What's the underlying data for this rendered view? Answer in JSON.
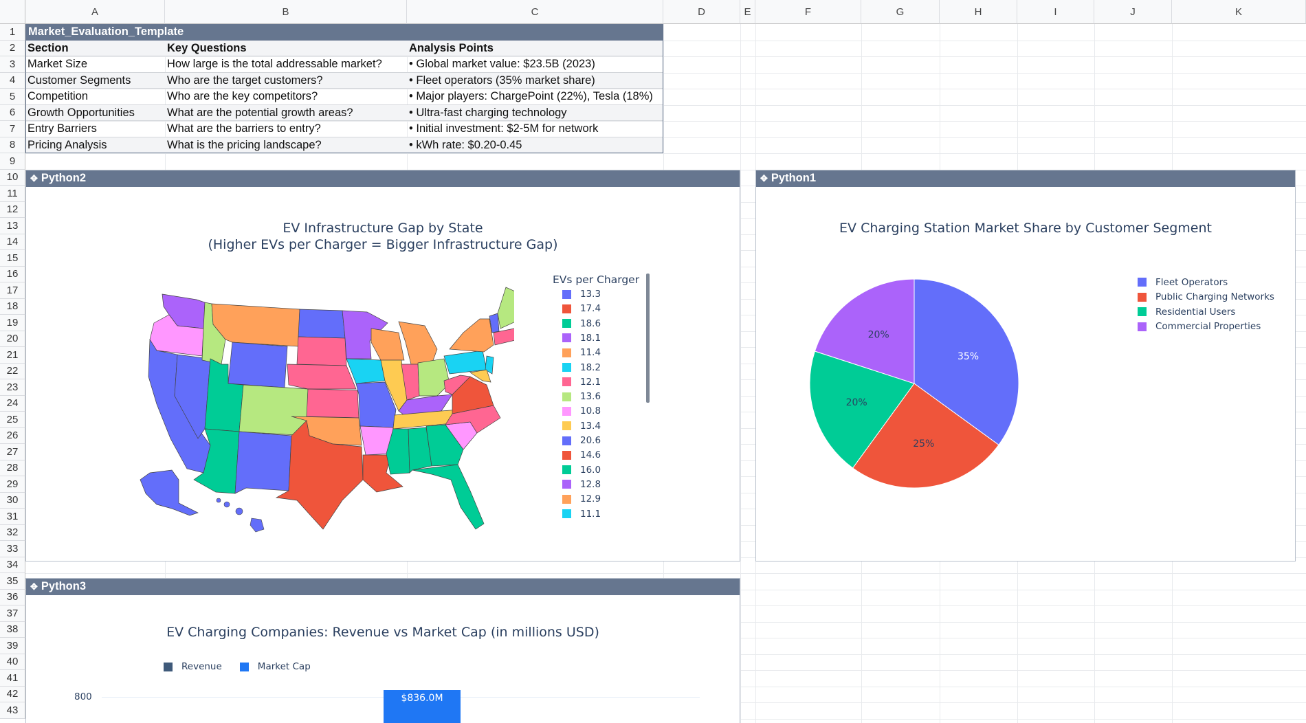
{
  "columns": [
    "A",
    "B",
    "C",
    "D",
    "E",
    "F",
    "G",
    "H",
    "I",
    "J",
    "K"
  ],
  "rows": [
    "1",
    "2",
    "3",
    "4",
    "5",
    "6",
    "7",
    "8",
    "9",
    "10",
    "11",
    "12",
    "13",
    "14",
    "15",
    "16",
    "17",
    "18",
    "19",
    "20",
    "21",
    "22",
    "23",
    "24",
    "25",
    "26",
    "27",
    "28",
    "29",
    "30",
    "31",
    "32",
    "33",
    "34",
    "35",
    "36",
    "37",
    "38",
    "39",
    "40",
    "41",
    "42",
    "43"
  ],
  "table": {
    "title": "Market_Evaluation_Template",
    "headers": [
      "Section",
      "Key Questions",
      "Analysis Points"
    ],
    "rows": [
      [
        "Market Size",
        "How large is the total addressable market?",
        "• Global market value: $23.5B (2023)"
      ],
      [
        "Customer Segments",
        "Who are the target customers?",
        "• Fleet operators (35% market share)"
      ],
      [
        "Competition",
        "Who are the key competitors?",
        "• Major players: ChargePoint (22%), Tesla (18%)"
      ],
      [
        "Growth Opportunities",
        "What are the potential growth areas?",
        "• Ultra-fast charging technology"
      ],
      [
        "Entry Barriers",
        "What are the barriers to entry?",
        "• Initial investment: $2-5M for network"
      ],
      [
        "Pricing Analysis",
        "What is the pricing landscape?",
        "• kWh rate: $0.20-0.45"
      ]
    ]
  },
  "panels": {
    "python2": {
      "label": "Python2",
      "icon": "python-icon"
    },
    "python1": {
      "label": "Python1",
      "icon": "python-icon"
    },
    "python3": {
      "label": "Python3",
      "icon": "python-icon"
    }
  },
  "chart_data": [
    {
      "type": "choropleth",
      "title": "EV Infrastructure Gap by State",
      "subtitle": "(Higher EVs per Charger = Bigger Infrastructure Gap)",
      "legend_title": "EVs per Charger",
      "legend_placement": "right",
      "legend_values": [
        "13.3",
        "17.4",
        "18.6",
        "18.1",
        "11.4",
        "18.2",
        "12.1",
        "13.6",
        "10.8",
        "13.4",
        "20.6",
        "14.6",
        "16.0",
        "12.8",
        "12.9",
        "11.1"
      ],
      "colors": [
        "#636efa",
        "#ef553b",
        "#00cc96",
        "#ab63fa",
        "#ffa15a",
        "#19d3f3",
        "#ff6692",
        "#b6e880",
        "#ff97ff",
        "#fecb52"
      ]
    },
    {
      "type": "pie",
      "title": "EV Charging Station Market Share by Customer Segment",
      "labels": [
        "Fleet Operators",
        "Public Charging Networks",
        "Residential Users",
        "Commercial Properties"
      ],
      "values": [
        35,
        25,
        20,
        20
      ],
      "text_labels": [
        "35%",
        "25%",
        "20%",
        "20%"
      ],
      "colors": [
        "#636efa",
        "#ef553b",
        "#00cc96",
        "#ab63fa"
      ],
      "legend_placement": "top-right"
    },
    {
      "type": "bar",
      "title": "EV Charging Companies: Revenue vs Market Cap (in millions USD)",
      "series": [
        {
          "name": "Revenue",
          "color": "#3f5a7a"
        },
        {
          "name": "Market Cap",
          "color": "#1f77f4",
          "visible_values": [
            836.0
          ],
          "visible_labels": [
            "$836.0M"
          ]
        }
      ],
      "y_ticks": [
        "800"
      ],
      "legend_placement": "top-left"
    }
  ]
}
